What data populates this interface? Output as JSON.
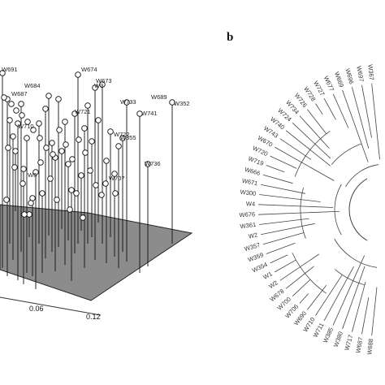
{
  "figure": {
    "panel_b_letter": "b"
  },
  "chart_data": [
    {
      "type": "scatter",
      "title": "",
      "xlabel": "",
      "ylabel": "",
      "x_tick_labels": [
        "0.06",
        "0.12"
      ],
      "point_labels": [
        "W691",
        "W674",
        "W684",
        "W673",
        "W687",
        "W689",
        "W733",
        "W352",
        "W721",
        "W741",
        "W710",
        "W722",
        "W355",
        "W736",
        "W707",
        "W6",
        "W3"
      ]
    },
    {
      "type": "tree",
      "title": "",
      "leaf_labels": [
        "W367",
        "W697",
        "W696",
        "W669",
        "W677",
        "W727",
        "W728",
        "W726",
        "W734",
        "W724",
        "W740",
        "W743",
        "W670",
        "W720",
        "W719",
        "W666",
        "W671",
        "W300",
        "W4",
        "W676",
        "W361",
        "W2",
        "W357",
        "W359",
        "W354",
        "W1",
        "W2",
        "W678",
        "W700",
        "W706",
        "W690",
        "W710",
        "W711",
        "W385",
        "W380",
        "W717",
        "W687",
        "W688"
      ]
    }
  ]
}
